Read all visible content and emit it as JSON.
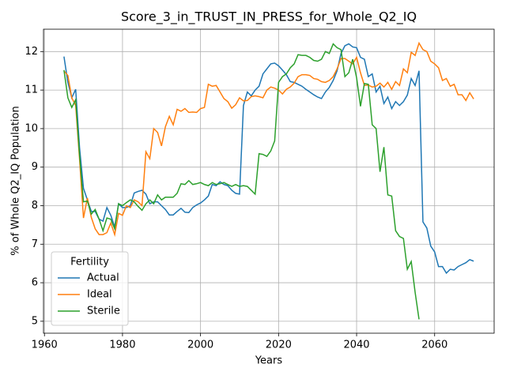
{
  "chart_data": {
    "type": "line",
    "title": "Score_3_in_TRUST_IN_PRESS_for_Whole_Q2_IQ",
    "xlabel": "Years",
    "ylabel": "% of Whole Q2_IQ Population",
    "legend_title": "Fertility",
    "legend": "lower left",
    "grid": true,
    "x": [
      1965,
      1966,
      1967,
      1968,
      1969,
      1970,
      1971,
      1972,
      1973,
      1974,
      1975,
      1976,
      1977,
      1978,
      1979,
      1980,
      1981,
      1982,
      1983,
      1984,
      1985,
      1986,
      1987,
      1988,
      1989,
      1990,
      1991,
      1992,
      1993,
      1994,
      1995,
      1996,
      1997,
      1998,
      1999,
      2000,
      2001,
      2002,
      2003,
      2004,
      2005,
      2006,
      2007,
      2008,
      2009,
      2010,
      2011,
      2012,
      2013,
      2014,
      2015,
      2016,
      2017,
      2018,
      2019,
      2020,
      2021,
      2022,
      2023,
      2024,
      2025,
      2026,
      2027,
      2028,
      2029,
      2030,
      2031,
      2032,
      2033,
      2034,
      2035,
      2036,
      2037,
      2038,
      2039,
      2040,
      2041,
      2042,
      2043,
      2044,
      2045,
      2046,
      2047,
      2048,
      2049,
      2050,
      2051,
      2052,
      2053,
      2054,
      2055,
      2056,
      2057,
      2058,
      2059,
      2060,
      2061,
      2062,
      2063,
      2064,
      2065,
      2066,
      2067,
      2068,
      2069,
      2070
    ],
    "series": [
      {
        "name": "Actual",
        "color": "#1f77b4",
        "values": [
          11.87,
          11.2,
          10.8,
          11.02,
          9.5,
          8.45,
          8.15,
          7.85,
          7.85,
          7.65,
          7.6,
          7.95,
          7.75,
          7.45,
          8.05,
          7.95,
          7.95,
          8.0,
          8.33,
          8.37,
          8.4,
          8.3,
          8.05,
          8.1,
          8.1,
          8.0,
          7.9,
          7.76,
          7.76,
          7.85,
          7.93,
          7.83,
          7.82,
          7.95,
          8.02,
          8.07,
          8.15,
          8.25,
          8.55,
          8.52,
          8.62,
          8.55,
          8.52,
          8.4,
          8.32,
          8.3,
          10.6,
          10.95,
          10.85,
          11.0,
          11.1,
          11.42,
          11.55,
          11.68,
          11.7,
          11.63,
          11.52,
          11.4,
          11.22,
          11.2,
          11.15,
          11.1,
          11.02,
          10.95,
          10.88,
          10.82,
          10.78,
          10.95,
          11.07,
          11.25,
          11.5,
          11.95,
          12.15,
          12.2,
          12.12,
          12.1,
          11.85,
          11.8,
          11.35,
          11.42,
          10.95,
          11.1,
          10.65,
          10.82,
          10.52,
          10.7,
          10.6,
          10.7,
          10.87,
          11.3,
          11.12,
          11.5,
          7.58,
          7.42,
          6.95,
          6.8,
          6.42,
          6.42,
          6.25,
          6.35,
          6.33,
          6.42,
          6.47,
          6.52,
          6.6,
          6.56
        ]
      },
      {
        "name": "Ideal",
        "color": "#ff7f0e",
        "values": [
          11.5,
          11.38,
          10.8,
          10.6,
          9.2,
          7.68,
          8.2,
          7.7,
          7.4,
          7.25,
          7.25,
          7.3,
          7.55,
          7.25,
          7.8,
          7.75,
          8.0,
          7.95,
          8.15,
          8.1,
          8.0,
          9.4,
          9.22,
          10.0,
          9.9,
          9.55,
          10.05,
          10.32,
          10.1,
          10.5,
          10.45,
          10.52,
          10.42,
          10.43,
          10.42,
          10.52,
          10.55,
          11.15,
          11.1,
          11.12,
          10.95,
          10.78,
          10.7,
          10.53,
          10.62,
          10.8,
          10.72,
          10.73,
          10.83,
          10.85,
          10.83,
          10.8,
          11.0,
          11.08,
          11.05,
          11.0,
          10.9,
          11.02,
          11.08,
          11.18,
          11.35,
          11.4,
          11.4,
          11.38,
          11.3,
          11.28,
          11.22,
          11.2,
          11.25,
          11.35,
          11.55,
          11.82,
          11.82,
          11.75,
          11.68,
          11.85,
          11.45,
          11.12,
          11.13,
          11.08,
          11.1,
          11.18,
          11.08,
          11.2,
          11.02,
          11.22,
          11.12,
          11.55,
          11.45,
          11.98,
          11.9,
          12.22,
          12.05,
          12.0,
          11.75,
          11.68,
          11.58,
          11.25,
          11.3,
          11.1,
          11.15,
          10.88,
          10.88,
          10.73,
          10.93,
          10.77
        ]
      },
      {
        "name": "Sterile",
        "color": "#2ca02c",
        "values": [
          11.52,
          10.8,
          10.55,
          10.75,
          9.3,
          8.1,
          8.12,
          7.78,
          7.9,
          7.65,
          7.35,
          7.68,
          7.65,
          7.4,
          8.05,
          8.0,
          8.08,
          8.15,
          8.1,
          7.98,
          7.88,
          8.05,
          8.15,
          8.05,
          8.28,
          8.15,
          8.22,
          8.22,
          8.22,
          8.32,
          8.57,
          8.55,
          8.65,
          8.55,
          8.57,
          8.6,
          8.55,
          8.52,
          8.6,
          8.55,
          8.57,
          8.6,
          8.55,
          8.5,
          8.55,
          8.5,
          8.52,
          8.5,
          8.4,
          8.3,
          9.35,
          9.33,
          9.28,
          9.42,
          9.68,
          11.2,
          11.35,
          11.42,
          11.58,
          11.68,
          11.92,
          11.9,
          11.9,
          11.85,
          11.77,
          11.75,
          11.8,
          12.0,
          11.95,
          12.2,
          12.1,
          12.05,
          11.35,
          11.45,
          11.8,
          11.32,
          10.58,
          11.17,
          11.15,
          10.1,
          10.0,
          8.88,
          9.52,
          8.28,
          8.25,
          7.35,
          7.2,
          7.15,
          6.35,
          6.55,
          5.75,
          5.05,
          null,
          null,
          null,
          null,
          null,
          null,
          null,
          null,
          null,
          null,
          null,
          null,
          null,
          null
        ]
      }
    ],
    "xlim": [
      1959.75,
      2075.25
    ],
    "xticks": [
      1960,
      1980,
      2000,
      2020,
      2040,
      2060
    ],
    "ylim": [
      4.69,
      12.58
    ],
    "yticks": [
      5,
      6,
      7,
      8,
      9,
      10,
      11,
      12
    ]
  }
}
